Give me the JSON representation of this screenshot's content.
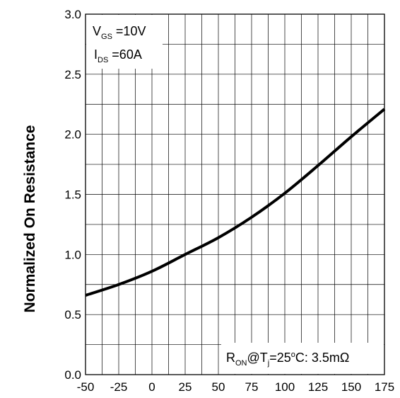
{
  "chart_data": {
    "type": "line",
    "title": "",
    "xlabel": "",
    "ylabel": "Normalized On Resistance",
    "xlim": [
      -50,
      175
    ],
    "ylim": [
      0.0,
      3.0
    ],
    "x_ticks": [
      "-50",
      "-25",
      "0",
      "25",
      "50",
      "75",
      "100",
      "125",
      "150",
      "175"
    ],
    "y_ticks": [
      "0.0",
      "0.5",
      "1.0",
      "1.5",
      "2.0",
      "2.5",
      "3.0"
    ],
    "grid": true,
    "series": [
      {
        "x": [
          -50,
          -25,
          0,
          25,
          50,
          75,
          100,
          125,
          150,
          175
        ],
        "y": [
          0.66,
          0.75,
          0.86,
          1.0,
          1.14,
          1.31,
          1.51,
          1.74,
          1.98,
          2.21
        ]
      }
    ],
    "annotations": {
      "vgs": {
        "main": "V",
        "sub": "GS",
        "rest": " =10V"
      },
      "ids": {
        "main": "I",
        "sub": "DS",
        "rest": " =60A"
      },
      "ron": {
        "r": "R",
        "r_sub": "ON",
        "at": "@T",
        "t_sub": "j",
        "eq": "=25",
        "deg": "o",
        "rest": "C: 3.5mΩ"
      }
    }
  }
}
